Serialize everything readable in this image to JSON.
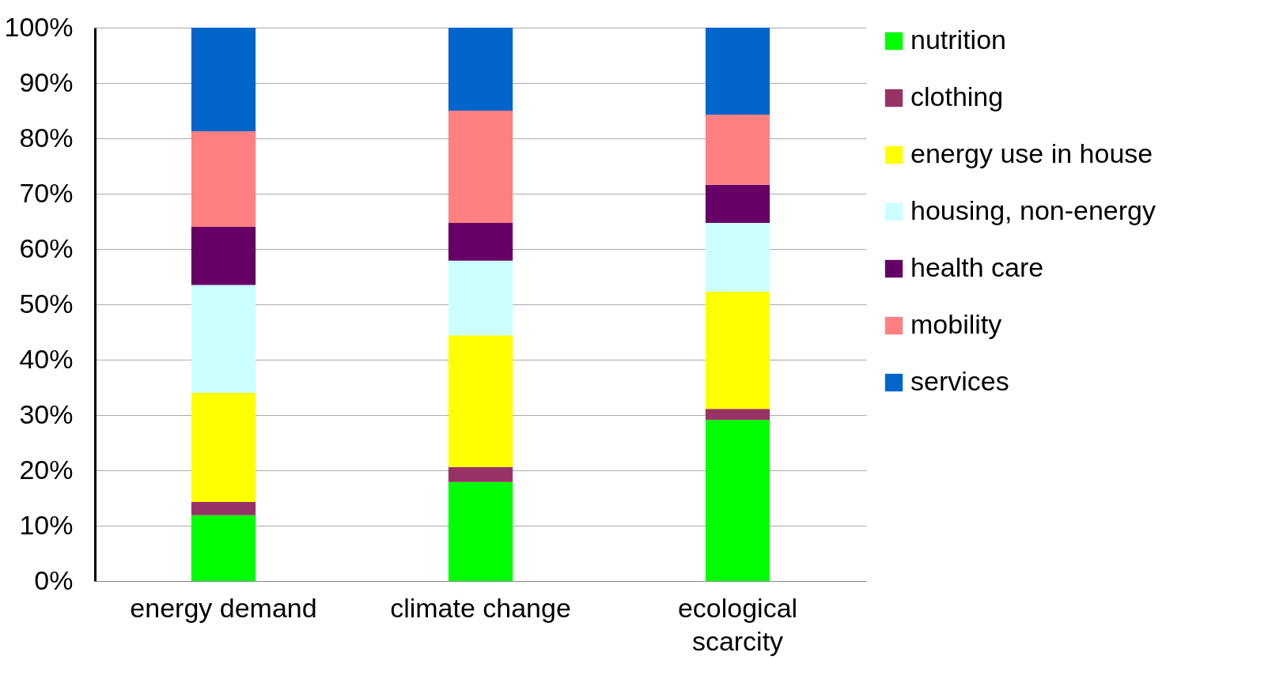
{
  "chart_data": {
    "type": "bar",
    "stacked": true,
    "categories": [
      "energy demand",
      "climate change",
      "ecological scarcity"
    ],
    "series": [
      {
        "name": "nutrition",
        "color": "#00ff00",
        "values": [
          11.9,
          17.9,
          29.1
        ]
      },
      {
        "name": "clothing",
        "color": "#993366",
        "values": [
          2.4,
          2.7,
          2.0
        ]
      },
      {
        "name": "energy use in house",
        "color": "#ffff00",
        "values": [
          19.7,
          23.8,
          21.2
        ]
      },
      {
        "name": "housing, non-energy",
        "color": "#ccffff",
        "values": [
          19.5,
          13.5,
          12.4
        ]
      },
      {
        "name": "health care",
        "color": "#660066",
        "values": [
          10.5,
          6.8,
          6.9
        ]
      },
      {
        "name": "mobility",
        "color": "#ff8080",
        "values": [
          17.3,
          20.3,
          12.7
        ]
      },
      {
        "name": "services",
        "color": "#0066cc",
        "values": [
          18.7,
          15.0,
          15.7
        ]
      }
    ],
    "ylim": [
      0,
      100
    ],
    "yticks": [
      {
        "value": 0,
        "label": "0%"
      },
      {
        "value": 10,
        "label": "10%"
      },
      {
        "value": 20,
        "label": "20%"
      },
      {
        "value": 30,
        "label": "30%"
      },
      {
        "value": 40,
        "label": "40%"
      },
      {
        "value": 50,
        "label": "50%"
      },
      {
        "value": 60,
        "label": "60%"
      },
      {
        "value": 70,
        "label": "70%"
      },
      {
        "value": 80,
        "label": "80%"
      },
      {
        "value": 90,
        "label": "90%"
      },
      {
        "value": 100,
        "label": "100%"
      }
    ],
    "grid": "y",
    "legend": "right"
  }
}
